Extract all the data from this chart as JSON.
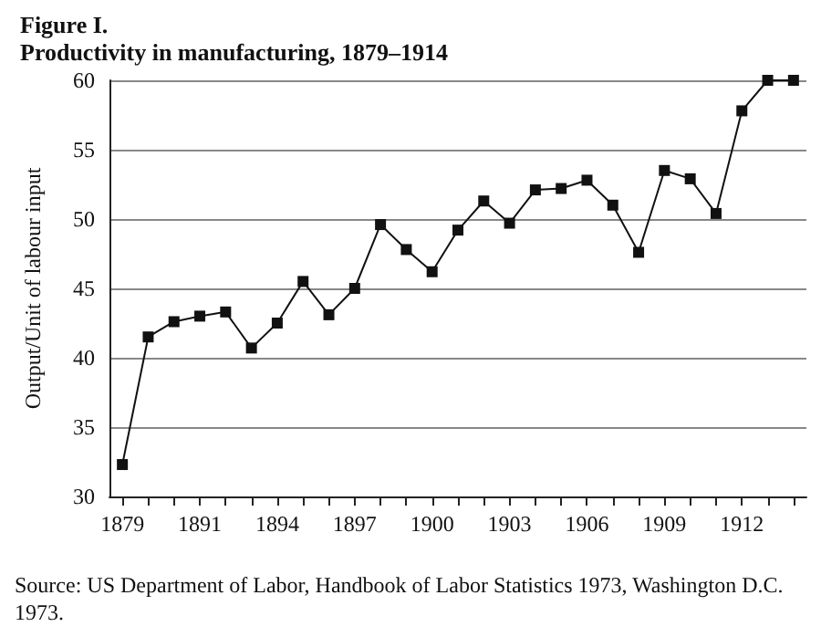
{
  "chart_data": {
    "type": "line",
    "title": "Figure I.",
    "subtitle": "Productivity in manufacturing, 1879–1914",
    "ylabel": "Output/Unit of labour input",
    "categories": [
      "1879",
      null,
      null,
      "1891",
      null,
      null,
      "1894",
      null,
      null,
      "1897",
      null,
      null,
      "1900",
      null,
      null,
      "1903",
      null,
      null,
      "1906",
      null,
      null,
      "1909",
      null,
      null,
      "1912",
      null,
      null
    ],
    "values": [
      32.3,
      41.5,
      42.6,
      43.0,
      43.3,
      40.7,
      42.5,
      45.5,
      43.1,
      45.0,
      49.6,
      47.8,
      46.2,
      49.2,
      51.3,
      49.7,
      52.1,
      52.2,
      52.8,
      51.0,
      47.6,
      53.5,
      52.9,
      50.4,
      57.8,
      60,
      60
    ],
    "color": "#111111",
    "marker": "square",
    "line_style": "solid",
    "grid": "y",
    "ylim": [
      30,
      60
    ],
    "yticks": [
      30,
      35,
      40,
      45,
      50,
      55,
      60
    ],
    "annotations": [
      "Source: US Department of Labor, Handbook of Labor Statistics 1973, Washington D.C. 1973."
    ]
  }
}
